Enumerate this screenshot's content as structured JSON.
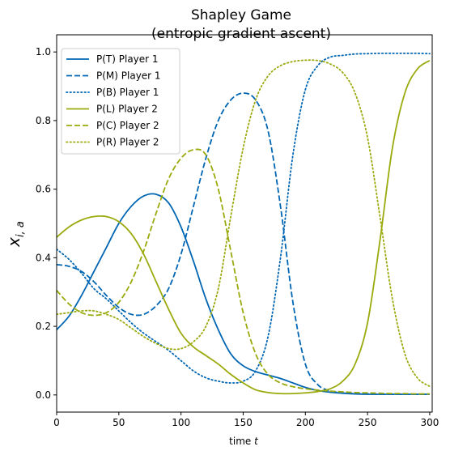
{
  "chart_data": {
    "type": "line",
    "title": "Shapley Game",
    "subtitle": "(entropic gradient ascent)",
    "xlabel": "time t",
    "ylabel": "x_{i,a}",
    "xlim": [
      0,
      302
    ],
    "ylim": [
      -0.05,
      1.05
    ],
    "xticks": [
      "0",
      "50",
      "100",
      "150",
      "200",
      "250",
      "300"
    ],
    "yticks": [
      "0.0",
      "0.2",
      "0.4",
      "0.6",
      "0.8",
      "1.0"
    ],
    "grid": false,
    "legend_position": "top-left",
    "colors": {
      "player1": "#0066b3",
      "player2": "#9aaa0c"
    },
    "series": [
      {
        "name": "P(T) Player 1",
        "color": "#0066b3",
        "style": "solid",
        "x": [
          0,
          10,
          20,
          30,
          40,
          50,
          60,
          70,
          80,
          90,
          100,
          110,
          120,
          130,
          140,
          150,
          160,
          170,
          180,
          190,
          200,
          210,
          220,
          230,
          240,
          250,
          260,
          270,
          280,
          290,
          300
        ],
        "y": [
          0.19,
          0.23,
          0.29,
          0.36,
          0.43,
          0.5,
          0.55,
          0.58,
          0.585,
          0.56,
          0.49,
          0.39,
          0.28,
          0.19,
          0.12,
          0.085,
          0.068,
          0.058,
          0.048,
          0.035,
          0.022,
          0.013,
          0.008,
          0.005,
          0.003,
          0.002,
          0.002,
          0.002,
          0.002,
          0.002,
          0.002
        ]
      },
      {
        "name": "P(M) Player 1",
        "color": "#0066b3",
        "style": "dashed",
        "x": [
          0,
          10,
          20,
          30,
          40,
          50,
          60,
          70,
          80,
          90,
          100,
          110,
          120,
          130,
          140,
          150,
          160,
          170,
          180,
          190,
          200,
          210,
          220,
          230,
          240,
          250,
          260,
          270,
          280,
          290,
          300
        ],
        "y": [
          0.38,
          0.375,
          0.36,
          0.33,
          0.29,
          0.255,
          0.235,
          0.235,
          0.26,
          0.31,
          0.41,
          0.55,
          0.69,
          0.8,
          0.86,
          0.88,
          0.86,
          0.77,
          0.55,
          0.27,
          0.09,
          0.03,
          0.012,
          0.006,
          0.004,
          0.003,
          0.002,
          0.002,
          0.002,
          0.002,
          0.002
        ]
      },
      {
        "name": "P(B) Player 1",
        "color": "#0066b3",
        "style": "dotted",
        "x": [
          0,
          10,
          20,
          30,
          40,
          50,
          60,
          70,
          80,
          90,
          100,
          110,
          120,
          130,
          140,
          150,
          160,
          170,
          180,
          190,
          200,
          210,
          220,
          230,
          240,
          250,
          260,
          270,
          280,
          290,
          300
        ],
        "y": [
          0.425,
          0.395,
          0.355,
          0.31,
          0.28,
          0.245,
          0.21,
          0.18,
          0.155,
          0.13,
          0.1,
          0.07,
          0.05,
          0.04,
          0.035,
          0.04,
          0.07,
          0.17,
          0.4,
          0.7,
          0.89,
          0.96,
          0.985,
          0.99,
          0.994,
          0.995,
          0.996,
          0.996,
          0.996,
          0.996,
          0.995
        ]
      },
      {
        "name": "P(L) Player 2",
        "color": "#9aaa0c",
        "style": "solid",
        "x": [
          0,
          10,
          20,
          30,
          40,
          50,
          60,
          70,
          80,
          90,
          100,
          110,
          120,
          130,
          140,
          150,
          160,
          170,
          180,
          190,
          200,
          210,
          220,
          230,
          240,
          250,
          260,
          270,
          280,
          290,
          300
        ],
        "y": [
          0.46,
          0.49,
          0.51,
          0.52,
          0.52,
          0.505,
          0.47,
          0.41,
          0.33,
          0.25,
          0.18,
          0.14,
          0.115,
          0.09,
          0.06,
          0.035,
          0.015,
          0.007,
          0.004,
          0.004,
          0.006,
          0.01,
          0.018,
          0.04,
          0.09,
          0.21,
          0.45,
          0.72,
          0.88,
          0.95,
          0.975
        ]
      },
      {
        "name": "P(C) Player 2",
        "color": "#9aaa0c",
        "style": "dashed",
        "x": [
          0,
          10,
          20,
          30,
          40,
          50,
          60,
          70,
          80,
          90,
          100,
          110,
          120,
          130,
          140,
          150,
          160,
          170,
          180,
          190,
          200,
          210,
          220,
          230,
          240,
          250,
          260,
          270,
          280,
          290,
          300
        ],
        "y": [
          0.305,
          0.265,
          0.24,
          0.232,
          0.24,
          0.27,
          0.33,
          0.42,
          0.53,
          0.63,
          0.69,
          0.715,
          0.7,
          0.6,
          0.42,
          0.24,
          0.12,
          0.06,
          0.035,
          0.024,
          0.018,
          0.014,
          0.011,
          0.009,
          0.007,
          0.006,
          0.005,
          0.004,
          0.004,
          0.003,
          0.003
        ]
      },
      {
        "name": "P(R) Player 2",
        "color": "#9aaa0c",
        "style": "dotted",
        "x": [
          0,
          10,
          20,
          30,
          40,
          50,
          60,
          70,
          80,
          90,
          100,
          110,
          120,
          130,
          140,
          150,
          160,
          170,
          180,
          190,
          200,
          210,
          220,
          230,
          240,
          250,
          260,
          270,
          280,
          290,
          300
        ],
        "y": [
          0.235,
          0.24,
          0.245,
          0.245,
          0.235,
          0.22,
          0.195,
          0.17,
          0.15,
          0.135,
          0.135,
          0.155,
          0.2,
          0.31,
          0.52,
          0.72,
          0.86,
          0.93,
          0.96,
          0.972,
          0.976,
          0.975,
          0.965,
          0.94,
          0.88,
          0.75,
          0.52,
          0.28,
          0.12,
          0.05,
          0.025
        ]
      }
    ]
  }
}
